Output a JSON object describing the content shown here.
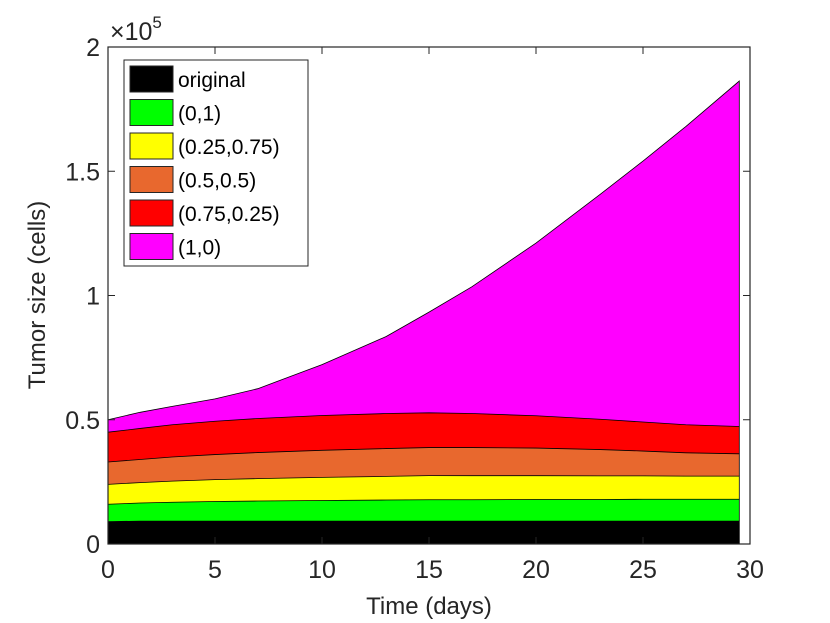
{
  "chart_data": {
    "type": "area",
    "stacked": true,
    "title": "",
    "xlabel": "Time (days)",
    "ylabel": "Tumor size (cells)",
    "y_exponent_label": "×10",
    "y_exponent_power": "5",
    "xlim": [
      0,
      30
    ],
    "ylim": [
      0,
      2
    ],
    "xticks": [
      0,
      5,
      10,
      15,
      20,
      25,
      30
    ],
    "yticks": [
      0,
      0.5,
      1,
      1.5,
      2
    ],
    "ytick_labels": [
      "0",
      "0.5",
      "1",
      "1.5",
      "2"
    ],
    "grid": false,
    "legend_position": "top-left",
    "x": [
      0,
      1.5,
      3,
      5,
      7,
      10,
      13,
      15,
      17,
      20,
      23,
      25,
      27,
      29.5
    ],
    "series": [
      {
        "name": "original",
        "color": "#000000",
        "values": [
          0.09,
          0.092,
          0.092,
          0.092,
          0.092,
          0.092,
          0.092,
          0.092,
          0.092,
          0.092,
          0.092,
          0.092,
          0.092,
          0.092
        ]
      },
      {
        "name": "(0,1)",
        "color": "#00ff00",
        "values": [
          0.07,
          0.073,
          0.076,
          0.079,
          0.081,
          0.083,
          0.085,
          0.086,
          0.086,
          0.087,
          0.087,
          0.088,
          0.088,
          0.088
        ]
      },
      {
        "name": "(0.25,0.75)",
        "color": "#ffff00",
        "values": [
          0.08,
          0.082,
          0.085,
          0.088,
          0.09,
          0.093,
          0.095,
          0.097,
          0.097,
          0.096,
          0.095,
          0.094,
          0.093,
          0.093
        ]
      },
      {
        "name": "(0.5,0.5)",
        "color": "#e8682e",
        "values": [
          0.09,
          0.093,
          0.097,
          0.101,
          0.105,
          0.109,
          0.112,
          0.113,
          0.113,
          0.111,
          0.106,
          0.1,
          0.094,
          0.09
        ]
      },
      {
        "name": "(0.75,0.25)",
        "color": "#ff0000",
        "values": [
          0.12,
          0.125,
          0.13,
          0.134,
          0.137,
          0.14,
          0.141,
          0.14,
          0.137,
          0.13,
          0.122,
          0.117,
          0.113,
          0.11
        ]
      },
      {
        "name": "(1,0)",
        "color": "#ff00ff",
        "values": [
          0.05,
          0.065,
          0.074,
          0.09,
          0.12,
          0.205,
          0.31,
          0.405,
          0.51,
          0.695,
          0.905,
          1.05,
          1.2,
          1.39
        ]
      }
    ]
  }
}
